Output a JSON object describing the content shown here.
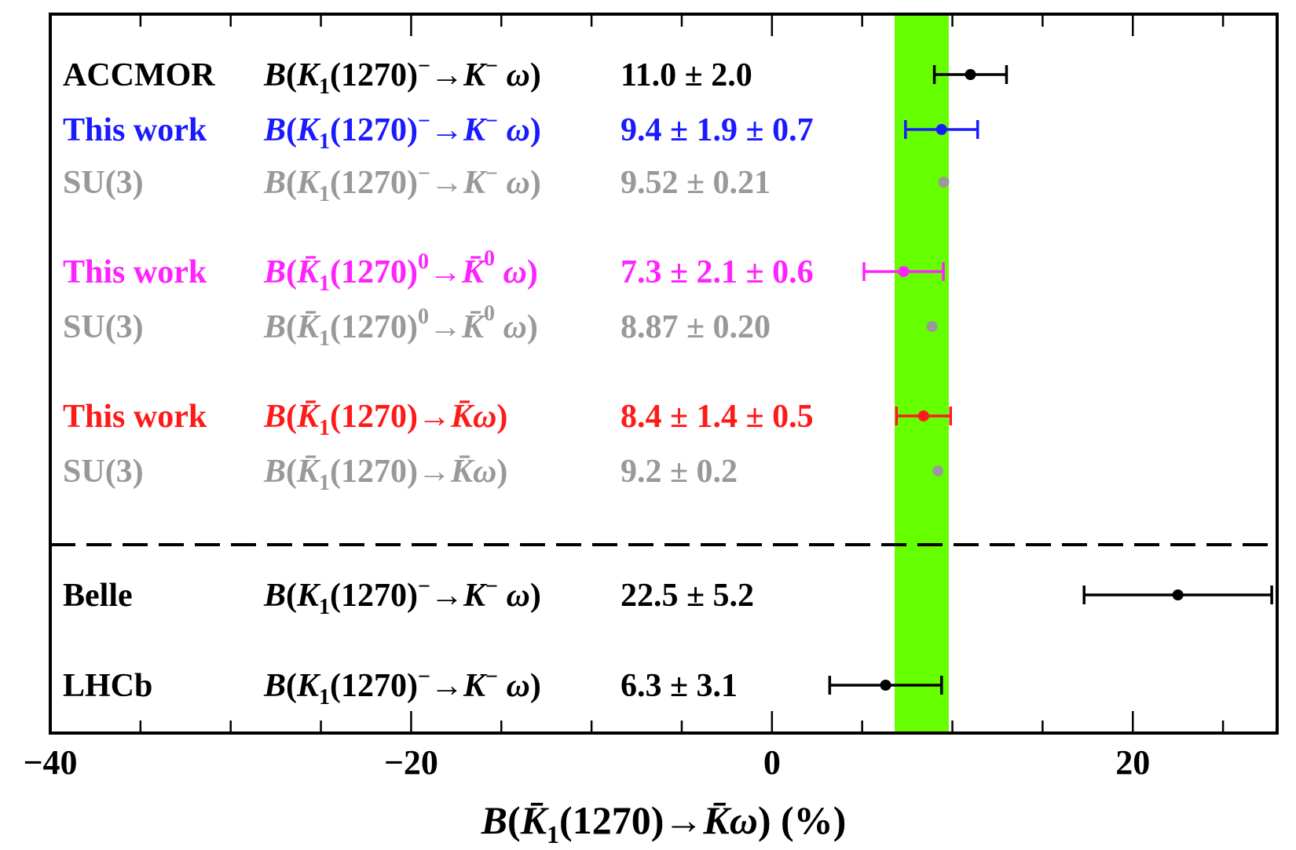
{
  "chart_data": {
    "type": "scatter",
    "xlim": [
      -40,
      28
    ],
    "xticks": [
      -40,
      -20,
      0,
      20
    ],
    "xtick_labels": [
      "−40",
      "−20",
      "0",
      "20"
    ],
    "xlabel_parts": [
      "B(",
      "K",
      "1",
      "(1270)→",
      "K",
      "ω) (%)"
    ],
    "band": {
      "from": 6.8,
      "to": 9.8,
      "color": "#66ff00"
    },
    "rows": [
      {
        "source": "ACCMOR",
        "quantity": "B(K1(1270)−→K−ω)",
        "value_text": "11.0 ± 2.0",
        "value": 11.0,
        "err": 2.0,
        "color": "#000000",
        "kind": "charged",
        "errbar": true
      },
      {
        "source": "This work",
        "quantity": "B(K1(1270)−→K−ω)",
        "value_text": "9.4 ± 1.9 ± 0.7",
        "value": 9.4,
        "err": 2.0,
        "color": "#1a1aff",
        "kind": "charged",
        "errbar": true
      },
      {
        "source": "SU(3)",
        "quantity": "B(K1(1270)−→K−ω)",
        "value_text": "9.52 ± 0.21",
        "value": 9.52,
        "err": 0.21,
        "color": "#999999",
        "kind": "charged",
        "errbar": false
      },
      {
        "source": "This work",
        "quantity": "B(K̄1(1270)0→K̄0ω)",
        "value_text": "7.3 ± 2.1 ± 0.6",
        "value": 7.3,
        "err": 2.2,
        "color": "#ff22ff",
        "kind": "neutral",
        "errbar": true
      },
      {
        "source": "SU(3)",
        "quantity": "B(K̄1(1270)0→K̄0ω)",
        "value_text": "8.87 ± 0.20",
        "value": 8.87,
        "err": 0.2,
        "color": "#999999",
        "kind": "neutral",
        "errbar": false
      },
      {
        "source": "This work",
        "quantity": "B(K̄1(1270)→K̄ω)",
        "value_text": "8.4 ± 1.4 ± 0.5",
        "value": 8.4,
        "err": 1.5,
        "color": "#ff1a1a",
        "kind": "combined",
        "errbar": true
      },
      {
        "source": "SU(3)",
        "quantity": "B(K̄1(1270)→K̄ω)",
        "value_text": "9.2 ± 0.2",
        "value": 9.2,
        "err": 0.2,
        "color": "#999999",
        "kind": "combined",
        "errbar": false
      },
      {
        "source": "Belle",
        "quantity": "B(K1(1270)−→K−ω)",
        "value_text": "22.5 ± 5.2",
        "value": 22.5,
        "err": 5.2,
        "color": "#000000",
        "kind": "charged",
        "errbar": true
      },
      {
        "source": "LHCb",
        "quantity": "B(K1(1270)−→K−ω)",
        "value_text": "6.3 ± 3.1",
        "value": 6.3,
        "err": 3.1,
        "color": "#000000",
        "kind": "charged",
        "errbar": true
      }
    ],
    "separator": "dashed",
    "grid": false,
    "legend": "none"
  }
}
